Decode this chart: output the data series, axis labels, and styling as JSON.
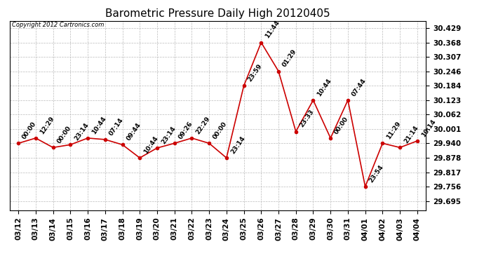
{
  "title": "Barometric Pressure Daily High 20120405",
  "copyright": "Copyright 2012 Cartronics.com",
  "x_labels": [
    "03/12",
    "03/13",
    "03/14",
    "03/15",
    "03/16",
    "03/17",
    "03/18",
    "03/19",
    "03/20",
    "03/21",
    "03/22",
    "03/23",
    "03/24",
    "03/25",
    "03/26",
    "03/27",
    "03/28",
    "03/29",
    "03/30",
    "03/31",
    "04/01",
    "04/02",
    "04/03",
    "04/04"
  ],
  "y_values": [
    29.94,
    29.962,
    29.922,
    29.934,
    29.962,
    29.956,
    29.934,
    29.878,
    29.92,
    29.94,
    29.962,
    29.94,
    29.878,
    30.184,
    30.368,
    30.246,
    29.99,
    30.123,
    29.962,
    30.123,
    29.756,
    29.94,
    29.922,
    29.95
  ],
  "time_labels": [
    "00:00",
    "12:29",
    "00:00",
    "23:14",
    "10:44",
    "07:14",
    "09:44",
    "10:44",
    "23:14",
    "09:26",
    "22:29",
    "00:00",
    "23:14",
    "23:59",
    "11:44",
    "01:29",
    "23:33",
    "10:44",
    "00:00",
    "07:44",
    "23:54",
    "11:29",
    "21:14",
    "10:14"
  ],
  "line_color": "#cc0000",
  "marker_color": "#cc0000",
  "background_color": "#ffffff",
  "grid_color": "#bbbbbb",
  "title_fontsize": 11,
  "tick_fontsize": 7.5,
  "annotation_fontsize": 6.5,
  "ytick_values": [
    29.695,
    29.756,
    29.817,
    29.878,
    29.94,
    30.001,
    30.062,
    30.123,
    30.184,
    30.246,
    30.307,
    30.368,
    30.429
  ],
  "ylim": [
    29.655,
    30.459
  ],
  "marker_size": 3,
  "fig_width": 6.9,
  "fig_height": 3.75,
  "dpi": 100
}
